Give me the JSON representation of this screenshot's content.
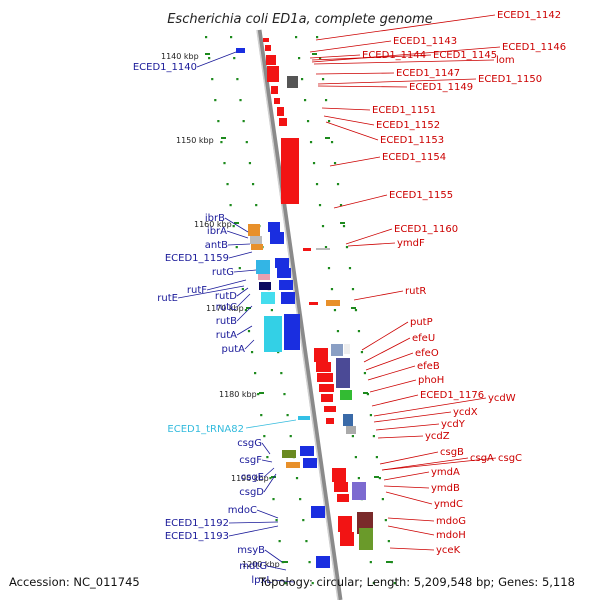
{
  "title": "Escherichia coli ED1a, complete genome",
  "footer": {
    "accession": "Accession: NC_011745",
    "summary": "Topology: circular; Length: 5,209,548 bp; Genes: 5,118"
  },
  "colors": {
    "forward_gene": "#f21414",
    "reverse_gene": "#1a2ee0",
    "rna_gene": "#33c0e6",
    "label_red": "#cc0000",
    "label_blue": "#1a1a99",
    "label_cyan": "#33bbdd",
    "tick": "#1d8a1d",
    "backbone": "#8a8a8a"
  },
  "scale_marks": [
    "1140 kbp",
    "1150 kbp",
    "1160 kbp",
    "1170 kbp",
    "1180 kbp",
    "1190 kbp",
    "1200 kbp"
  ],
  "genes_right": [
    "ECED1_1142",
    "ECED1_1143",
    "ECED1_1144",
    "ECED1_1145",
    "ECED1_1146",
    "lom",
    "ECED1_1147",
    "ECED1_1150",
    "ECED1_1149",
    "ECED1_1151",
    "ECED1_1152",
    "ECED1_1153",
    "ECED1_1154",
    "ECED1_1155",
    "ECED1_1160",
    "ymdF",
    "rutR",
    "putP",
    "efeU",
    "efeO",
    "efeB",
    "phoH",
    "ECED1_1176",
    "ycdW",
    "ycdX",
    "ycdY",
    "ycdZ",
    "csgB",
    "csgA",
    "csgC",
    "ymdA",
    "ymdB",
    "ymdC",
    "mdoG",
    "mdoH",
    "yceK"
  ],
  "genes_left": [
    "ECED1_1140",
    "ibrB",
    "ibrA",
    "antB",
    "ECED1_1159",
    "rutG",
    "rutF",
    "rutE",
    "rutD",
    "rutC",
    "rutB",
    "rutA",
    "putA",
    "csgG",
    "csgF",
    "csgE",
    "csgD",
    "mdoC",
    "ECED1_1192",
    "ECED1_1193",
    "msyB",
    "mdtG",
    "lpxL"
  ],
  "rna_genes": [
    "ECED1_tRNA82"
  ]
}
